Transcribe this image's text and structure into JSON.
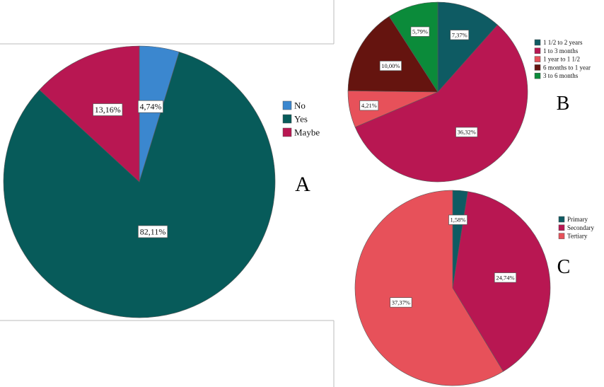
{
  "chart_data": [
    {
      "type": "pie",
      "panel": "A",
      "series": [
        {
          "name": "No",
          "value": 4.74,
          "label": "4,74%",
          "color": "#3b87cf"
        },
        {
          "name": "Yes",
          "value": 82.11,
          "label": "82,11%",
          "color": "#075b5a"
        },
        {
          "name": "Maybe",
          "value": 13.16,
          "label": "13,16%",
          "color": "#b81752"
        }
      ],
      "legend_placement": "right"
    },
    {
      "type": "pie",
      "panel": "B",
      "series": [
        {
          "name": "1 1/2 to 2 years",
          "value": 7.37,
          "label": "7,37%",
          "color": "#0e5b63"
        },
        {
          "name": "1 to 3 months",
          "value": 36.32,
          "label": "36,32%",
          "color": "#b81752"
        },
        {
          "name": "1 year to 1 1/2",
          "value": 4.21,
          "label": "4,21%",
          "color": "#e7515a"
        },
        {
          "name": "6 months to 1 year",
          "value": 10.0,
          "label": "10,00%",
          "color": "#65140f"
        },
        {
          "name": "3 to 6 months",
          "value": 5.79,
          "label": "5,79%",
          "color": "#0b8b3a"
        }
      ],
      "legend_placement": "right"
    },
    {
      "type": "pie",
      "panel": "C",
      "series": [
        {
          "name": "Primary",
          "value": 1.58,
          "label": "1,58%",
          "color": "#0e5b63"
        },
        {
          "name": "Secondary",
          "value": 24.74,
          "label": "24,74%",
          "color": "#b81752"
        },
        {
          "name": "Tertiary",
          "value": 37.37,
          "label": "37,37%",
          "color": "#e7515a"
        }
      ],
      "legend_placement": "right"
    }
  ]
}
